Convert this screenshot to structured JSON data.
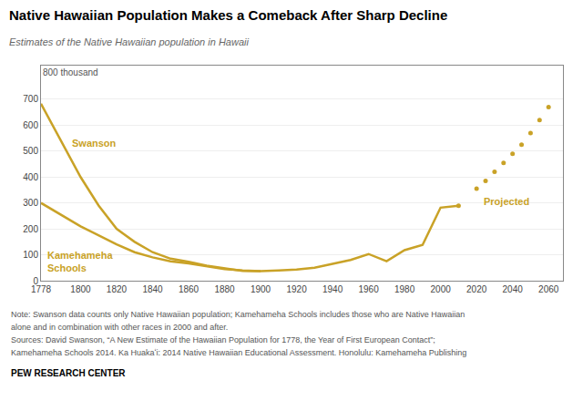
{
  "chart_data": {
    "type": "line",
    "title": "Native Hawaiian Population Makes a Comeback After Sharp Decline",
    "subtitle": "Estimates of the Native Hawaiian population in Hawaii",
    "annotations": [
      "800 thousand"
    ],
    "notes": [
      "Note: Swanson data counts only Native Hawaiian population; Kamehameha Schools includes those who are Native Hawaiian",
      "alone and in combination with other races in 2000 and after."
    ],
    "sources": [
      "Sources: David Swanson, “A New Estimate of the Hawaiian Population for 1778, the Year of First European Contact”;",
      "Kamehameha Schools 2014. Ka Huakaʻi: 2014 Native Hawaiian Educational Assessment. Honolulu: Kamehameha Publishing"
    ],
    "footer": "PEW RESEARCH CENTER",
    "series": [
      {
        "name": "Swanson",
        "color": "#C9A227",
        "line_style": "solid",
        "x": [
          1778,
          1790,
          1800,
          1810,
          1820,
          1830,
          1840,
          1850,
          1860,
          1870,
          1880,
          1890,
          1900
        ],
        "values": [
          683,
          530,
          400,
          290,
          200,
          150,
          110,
          85,
          73,
          58,
          48,
          38,
          37
        ]
      },
      {
        "name": "Kamehameha Schools",
        "color": "#C9A227",
        "line_style": "solid",
        "x": [
          1778,
          1800,
          1820,
          1830,
          1840,
          1850,
          1860,
          1870,
          1880,
          1890,
          1900,
          1910,
          1920,
          1930,
          1940,
          1950,
          1960,
          1970,
          1980,
          1990,
          2000,
          2010
        ],
        "values": [
          300,
          210,
          140,
          110,
          90,
          75,
          67,
          55,
          45,
          40,
          37,
          40,
          43,
          50,
          65,
          80,
          103,
          75,
          118,
          138,
          282,
          289
        ]
      },
      {
        "name": "Projected",
        "color": "#C9A227",
        "line_style": "none",
        "marker": "dot",
        "x": [
          2010,
          2020,
          2025,
          2030,
          2035,
          2040,
          2045,
          2050,
          2055,
          2060
        ],
        "values": [
          289,
          355,
          385,
          420,
          455,
          490,
          525,
          570,
          620,
          670
        ]
      }
    ],
    "xlim": [
      1778,
      2068
    ],
    "ylim": [
      0,
      830
    ],
    "xticks": [
      1778,
      1800,
      1820,
      1840,
      1860,
      1880,
      1900,
      1920,
      1940,
      1960,
      1980,
      2000,
      2020,
      2040,
      2060
    ],
    "yticks": [
      0,
      100,
      200,
      300,
      400,
      500,
      600,
      700
    ],
    "grid": true
  }
}
